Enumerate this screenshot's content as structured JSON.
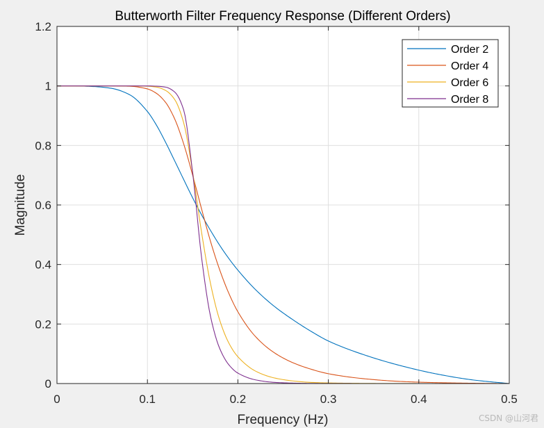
{
  "chart_data": {
    "type": "line",
    "title": "Butterworth Filter Frequency Response (Different Orders)",
    "xlabel": "Frequency (Hz)",
    "ylabel": "Magnitude",
    "xlim": [
      0,
      0.5
    ],
    "ylim": [
      0,
      1.2
    ],
    "xticks": [
      "0",
      "0.1",
      "0.2",
      "0.3",
      "0.4",
      "0.5"
    ],
    "yticks": [
      "0",
      "0.2",
      "0.4",
      "0.6",
      "0.8",
      "1",
      "1.2"
    ],
    "grid": true,
    "legend_position": "top-right",
    "x": [
      0,
      0.02,
      0.04,
      0.06,
      0.08,
      0.1,
      0.11,
      0.12,
      0.13,
      0.14,
      0.15,
      0.16,
      0.17,
      0.18,
      0.19,
      0.2,
      0.22,
      0.24,
      0.26,
      0.28,
      0.3,
      0.34,
      0.38,
      0.42,
      0.46,
      0.5
    ],
    "series": [
      {
        "name": "Order 2",
        "color": "#0072bd",
        "values": [
          1.0,
          0.9998,
          0.998,
          0.992,
          0.971,
          0.914,
          0.868,
          0.811,
          0.749,
          0.686,
          0.624,
          0.566,
          0.513,
          0.464,
          0.42,
          0.381,
          0.314,
          0.26,
          0.216,
          0.177,
          0.143,
          0.096,
          0.06,
          0.032,
          0.012,
          0.0
        ]
      },
      {
        "name": "Order 4",
        "color": "#d95319",
        "values": [
          1.0,
          1.0,
          1.0,
          0.9999,
          0.999,
          0.99,
          0.975,
          0.945,
          0.89,
          0.806,
          0.7,
          0.585,
          0.475,
          0.381,
          0.303,
          0.241,
          0.156,
          0.104,
          0.071,
          0.049,
          0.033,
          0.016,
          0.007,
          0.003,
          0.001,
          0.0
        ]
      },
      {
        "name": "Order 6",
        "color": "#edb120",
        "values": [
          1.0,
          1.0,
          1.0,
          1.0,
          1.0,
          0.999,
          0.996,
          0.985,
          0.955,
          0.877,
          0.71,
          0.505,
          0.332,
          0.212,
          0.136,
          0.09,
          0.041,
          0.019,
          0.009,
          0.004,
          0.002,
          0.0005,
          0.0001,
          0.0,
          0.0,
          0.0
        ]
      },
      {
        "name": "Order 8",
        "color": "#7e2f8e",
        "values": [
          1.0,
          1.0,
          1.0,
          1.0,
          1.0,
          1.0,
          0.999,
          0.996,
          0.98,
          0.92,
          0.708,
          0.42,
          0.222,
          0.117,
          0.063,
          0.035,
          0.012,
          0.004,
          0.0015,
          0.0005,
          0.0002,
          0.0,
          0.0,
          0.0,
          0.0,
          0.0
        ]
      }
    ]
  },
  "watermark": "CSDN @山河君"
}
